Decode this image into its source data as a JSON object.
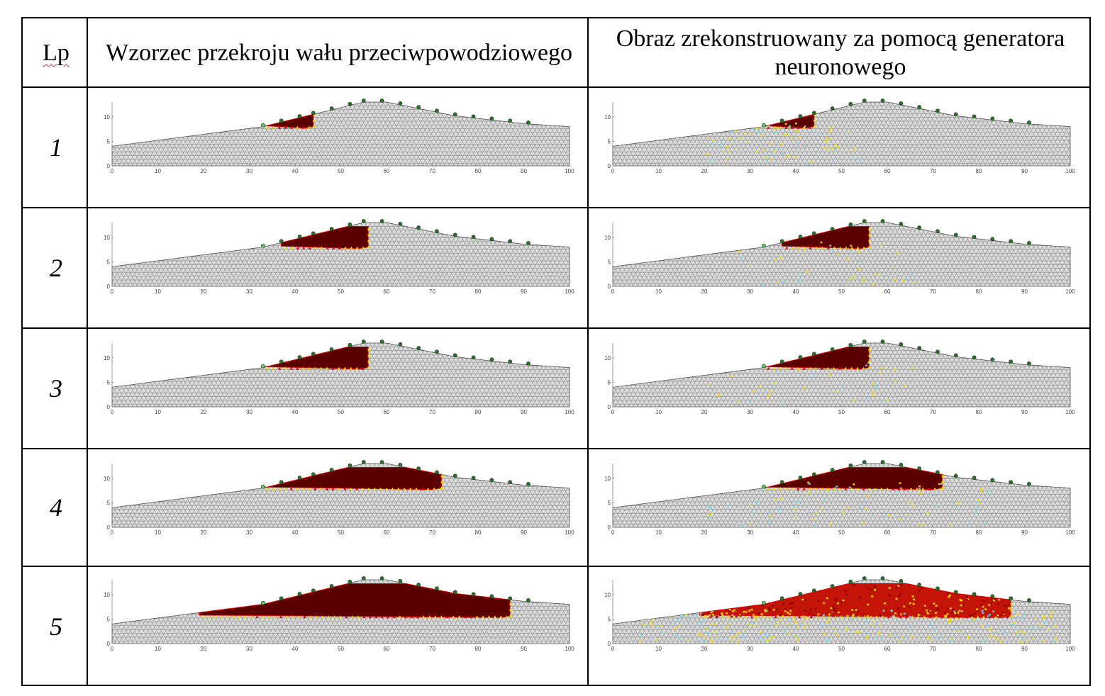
{
  "table": {
    "headers": {
      "lp": "Lp",
      "pattern": "Wzorzec przekroju wału przeciwpowodziowego",
      "reconstructed": "Obraz zrekonstruowany za pomocą generatora neuronowego"
    },
    "rows": [
      {
        "num": "1"
      },
      {
        "num": "2"
      },
      {
        "num": "3"
      },
      {
        "num": "4"
      },
      {
        "num": "5"
      }
    ]
  },
  "axes": {
    "x_ticks": [
      "0",
      "10",
      "20",
      "30",
      "40",
      "50",
      "60",
      "70",
      "80",
      "90",
      "100"
    ],
    "y_ticks": [
      "0",
      "5",
      "10"
    ]
  },
  "chart_data": [
    {
      "type": "heatmap",
      "row": 1,
      "panel": "pattern",
      "xlim": [
        0,
        100
      ],
      "ylim": [
        0,
        13
      ],
      "anomaly_x": [
        33,
        44
      ],
      "reconstruction_noise": "none",
      "colors": {
        "mesh_fill": "#dcdcdc",
        "mesh_line": "#333333",
        "anomaly": "#5a0000",
        "edge_red": "#e00000",
        "edge_yellow": "#f5e000",
        "noise_cyan": "#7fd8e8",
        "electrode": "#2f6e2f"
      }
    },
    {
      "type": "heatmap",
      "row": 1,
      "panel": "reconstructed",
      "xlim": [
        0,
        100
      ],
      "ylim": [
        0,
        13
      ],
      "anomaly_x": [
        33,
        44
      ],
      "reconstruction_noise": "medium"
    },
    {
      "type": "heatmap",
      "row": 2,
      "panel": "pattern",
      "xlim": [
        0,
        100
      ],
      "ylim": [
        0,
        13
      ],
      "anomaly_x": [
        37,
        56
      ],
      "reconstruction_noise": "none"
    },
    {
      "type": "heatmap",
      "row": 2,
      "panel": "reconstructed",
      "xlim": [
        0,
        100
      ],
      "ylim": [
        0,
        13
      ],
      "anomaly_x": [
        37,
        56
      ],
      "reconstruction_noise": "low"
    },
    {
      "type": "heatmap",
      "row": 3,
      "panel": "pattern",
      "xlim": [
        0,
        100
      ],
      "ylim": [
        0,
        13
      ],
      "anomaly_x": [
        33,
        56
      ],
      "reconstruction_noise": "none"
    },
    {
      "type": "heatmap",
      "row": 3,
      "panel": "reconstructed",
      "xlim": [
        0,
        100
      ],
      "ylim": [
        0,
        13
      ],
      "anomaly_x": [
        33,
        56
      ],
      "reconstruction_noise": "low"
    },
    {
      "type": "heatmap",
      "row": 4,
      "panel": "pattern",
      "xlim": [
        0,
        100
      ],
      "ylim": [
        0,
        13
      ],
      "anomaly_x": [
        33,
        72
      ],
      "reconstruction_noise": "none"
    },
    {
      "type": "heatmap",
      "row": 4,
      "panel": "reconstructed",
      "xlim": [
        0,
        100
      ],
      "ylim": [
        0,
        13
      ],
      "anomaly_x": [
        33,
        72
      ],
      "reconstruction_noise": "medium"
    },
    {
      "type": "heatmap",
      "row": 5,
      "panel": "pattern",
      "xlim": [
        0,
        100
      ],
      "ylim": [
        0,
        13
      ],
      "anomaly_x": [
        19,
        87
      ],
      "reconstruction_noise": "none"
    },
    {
      "type": "heatmap",
      "row": 5,
      "panel": "reconstructed",
      "xlim": [
        0,
        100
      ],
      "ylim": [
        0,
        13
      ],
      "anomaly_x": [
        19,
        87
      ],
      "reconstruction_noise": "high"
    }
  ]
}
